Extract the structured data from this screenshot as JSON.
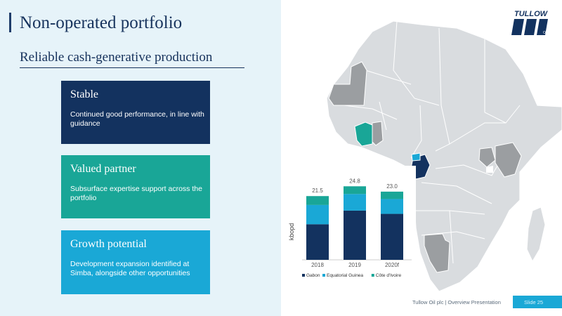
{
  "slide": {
    "title": "Non-operated portfolio",
    "subtitle": "Reliable cash-generative production",
    "footer": "Tullow Oil plc | Overview Presentation",
    "slide_number": "Slide 25"
  },
  "logo": {
    "text": "TULLOW",
    "mark": "OIL"
  },
  "cards": [
    {
      "title": "Stable",
      "desc": "Continued good performance, in line with guidance",
      "color": "#13325f"
    },
    {
      "title": "Valued partner",
      "desc": "Subsurface expertise support across the portfolio",
      "color": "#19a697"
    },
    {
      "title": "Growth potential",
      "desc": "Development expansion identified at Simba, alongside other opportunities",
      "color": "#1aa8d6"
    }
  ],
  "map": {
    "base_color": "#d9dcdf",
    "border_color": "#ffffff",
    "highlight_gray": "#9b9ea1",
    "gabon_color": "#13325f",
    "eq_guinea_color": "#1aa8d6",
    "cote_divoire_color": "#19a697"
  },
  "chart_data": {
    "type": "bar",
    "stacked": true,
    "categories": [
      "2018",
      "2019",
      "2020f"
    ],
    "totals": [
      21.5,
      24.8,
      23.0
    ],
    "total_labels": [
      "21.5",
      "24.8",
      "23.0"
    ],
    "ylabel": "kbopd",
    "ylim": [
      0,
      27
    ],
    "series": [
      {
        "name": "Gabon",
        "values": [
          12.0,
          16.6,
          15.5
        ],
        "color": "#13325f"
      },
      {
        "name": "Equatorial Guinea",
        "values": [
          6.5,
          5.6,
          5.0
        ],
        "color": "#1aa8d6"
      },
      {
        "name": "Côte d'Ivoire",
        "values": [
          3.0,
          2.6,
          2.5
        ],
        "color": "#19a697"
      }
    ]
  }
}
